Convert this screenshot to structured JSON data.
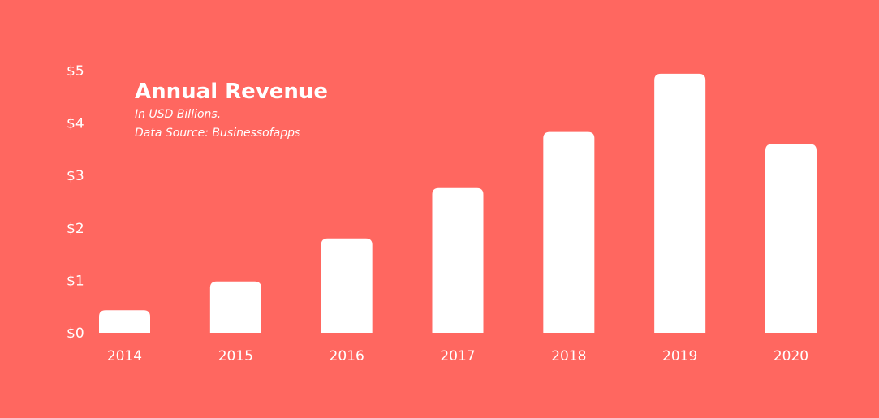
{
  "colors": {
    "background": "#FF6760",
    "bar": "#FFFFFF",
    "text": "#FFFFFF"
  },
  "chart_data": {
    "type": "bar",
    "title": "Annual Revenue",
    "subtitle_lines": [
      "In USD Billions.",
      "Data Source: Businessofapps"
    ],
    "categories": [
      "2014",
      "2015",
      "2016",
      "2017",
      "2018",
      "2019",
      "2020"
    ],
    "values": [
      0.43,
      0.98,
      1.8,
      2.76,
      3.83,
      4.94,
      3.6
    ],
    "ylim": [
      0,
      5
    ],
    "y_ticks": [
      0,
      1,
      2,
      3,
      4,
      5
    ],
    "y_tick_labels": [
      "$0",
      "$1",
      "$2",
      "$3",
      "$4",
      "$5"
    ],
    "grid": false,
    "legend": "none"
  }
}
